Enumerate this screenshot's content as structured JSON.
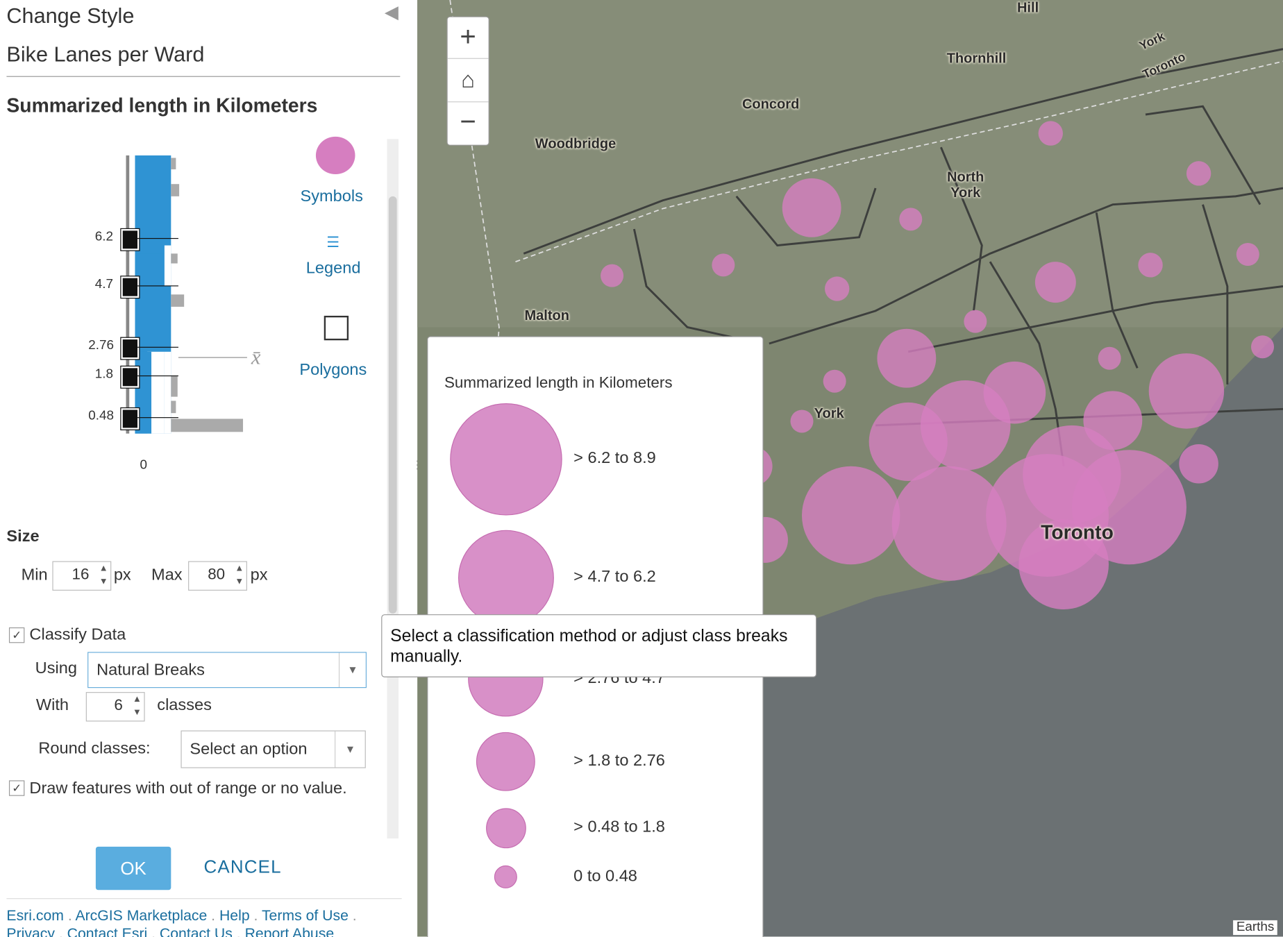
{
  "panel": {
    "title": "Change Style",
    "layer": "Bike Lanes per Ward",
    "attribute": "Summarized length in Kilometers",
    "breaks": [
      "6.2",
      "4.7",
      "2.76",
      "1.8",
      "0.48"
    ],
    "axis_zero": "0",
    "mean_symbol": "x̄",
    "tabs": [
      "Symbols",
      "Legend",
      "Polygons"
    ],
    "size": {
      "heading": "Size",
      "min_label": "Min",
      "min": "16",
      "max_label": "Max",
      "max": "80",
      "unit": "px"
    },
    "classify": {
      "label": "Classify Data",
      "using_label": "Using",
      "method": "Natural Breaks",
      "with_label": "With",
      "classes": "6",
      "classes_label": "classes",
      "round_label": "Round classes:",
      "round_value": "Select an option"
    },
    "draw_out_of_range": "Draw features with out of range or no value.",
    "ok": "OK",
    "cancel": "CANCEL",
    "footer": [
      "Esri.com",
      "ArcGIS Marketplace",
      "Help",
      "Terms of Use",
      "Privacy",
      "Contact Esri",
      "Contact Us",
      "Report Abuse"
    ]
  },
  "tooltip": "Select a classification method or adjust class breaks manually.",
  "legend": {
    "title": "Summarized length in Kilometers",
    "items": [
      "> 6.2 to 8.9",
      "> 4.7 to 6.2",
      "> 2.76 to 4.7",
      "> 1.8 to 2.76",
      "> 0.48 to 1.8",
      "0 to 0.48"
    ]
  },
  "map": {
    "labels": [
      "Hill",
      "Thornhill",
      "York",
      "Toronto",
      "Concord",
      "Woodbridge",
      "North York",
      "Malton",
      "York",
      "Toronto"
    ],
    "attribution": "Earths"
  }
}
